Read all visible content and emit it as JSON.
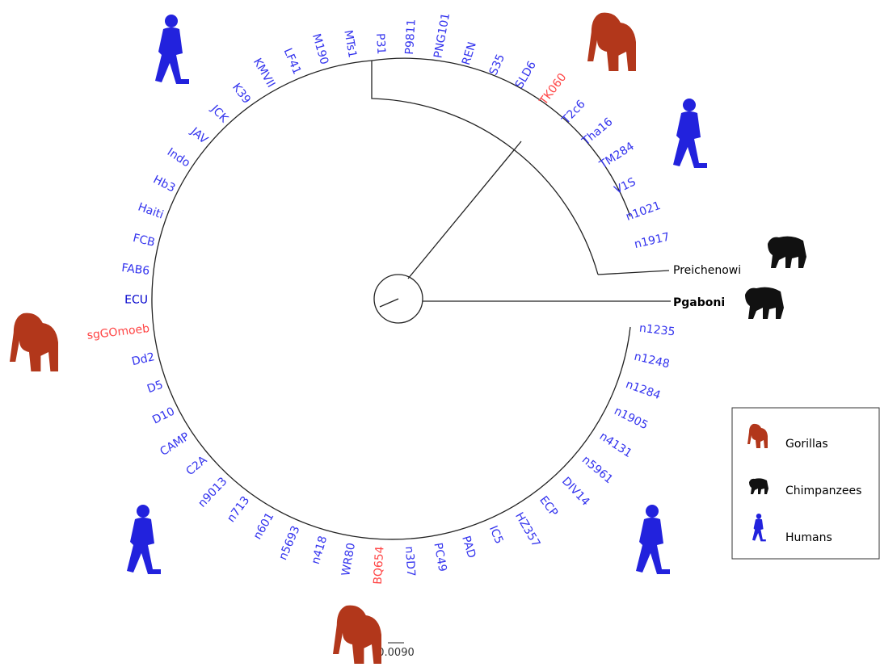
{
  "tree": {
    "leaves": [
      {
        "label": "n1917",
        "color": "#3333ee"
      },
      {
        "label": "n1021",
        "color": "#3333ee"
      },
      {
        "label": "V1S",
        "color": "#3333ee"
      },
      {
        "label": "TM284",
        "color": "#3333ee"
      },
      {
        "label": "Tha16",
        "color": "#3333ee"
      },
      {
        "label": "T2c6",
        "color": "#3333ee"
      },
      {
        "label": "TK060",
        "color": "#ff4444"
      },
      {
        "label": "SLD6",
        "color": "#3333ee"
      },
      {
        "label": "S35",
        "color": "#3333ee"
      },
      {
        "label": "REN",
        "color": "#3333ee"
      },
      {
        "label": "PNG101",
        "color": "#3333ee"
      },
      {
        "label": "P9811",
        "color": "#3333ee"
      },
      {
        "label": "P31",
        "color": "#3333ee"
      },
      {
        "label": "MTs1",
        "color": "#3333ee"
      },
      {
        "label": "M190",
        "color": "#3333ee"
      },
      {
        "label": "LF41",
        "color": "#3333ee"
      },
      {
        "label": "KMVII",
        "color": "#3333ee"
      },
      {
        "label": "K39",
        "color": "#3333ee"
      },
      {
        "label": "JCK",
        "color": "#3333ee"
      },
      {
        "label": "JAV",
        "color": "#3333ee"
      },
      {
        "label": "Indo",
        "color": "#3333ee"
      },
      {
        "label": "Hb3",
        "color": "#3333ee"
      },
      {
        "label": "Haiti",
        "color": "#3333ee"
      },
      {
        "label": "FCB",
        "color": "#3333ee"
      },
      {
        "label": "FAB6",
        "color": "#3333ee"
      },
      {
        "label": "ECU",
        "color": "#0000cc"
      },
      {
        "label": "sgGOmoeb",
        "color": "#ff4444"
      },
      {
        "label": "Dd2",
        "color": "#3333ee"
      },
      {
        "label": "D5",
        "color": "#3333ee"
      },
      {
        "label": "D10",
        "color": "#3333ee"
      },
      {
        "label": "CAMP",
        "color": "#3333ee"
      },
      {
        "label": "C2A",
        "color": "#3333ee"
      },
      {
        "label": "n9013",
        "color": "#3333ee"
      },
      {
        "label": "n713",
        "color": "#3333ee"
      },
      {
        "label": "n601",
        "color": "#3333ee"
      },
      {
        "label": "n5693",
        "color": "#3333ee"
      },
      {
        "label": "n418",
        "color": "#3333ee"
      },
      {
        "label": "WR80",
        "color": "#3333ee"
      },
      {
        "label": "BQ654",
        "color": "#ff4444"
      },
      {
        "label": "n3D7",
        "color": "#3333ee"
      },
      {
        "label": "PC49",
        "color": "#3333ee"
      },
      {
        "label": "PAD",
        "color": "#3333ee"
      },
      {
        "label": "IC5",
        "color": "#3333ee"
      },
      {
        "label": "HZ357",
        "color": "#3333ee"
      },
      {
        "label": "ECP",
        "color": "#3333ee"
      },
      {
        "label": "DIV14",
        "color": "#3333ee"
      },
      {
        "label": "n5961",
        "color": "#3333ee"
      },
      {
        "label": "n4131",
        "color": "#3333ee"
      },
      {
        "label": "n1905",
        "color": "#3333ee"
      },
      {
        "label": "n1284",
        "color": "#3333ee"
      },
      {
        "label": "n1248",
        "color": "#3333ee"
      },
      {
        "label": "n1235",
        "color": "#3333ee"
      }
    ],
    "outgroups": [
      "Preichenowi",
      "Pgaboni"
    ],
    "scale_bar": "0.0090"
  },
  "legend": {
    "items": [
      "Gorillas",
      "Chimpanzees",
      "Humans"
    ]
  }
}
